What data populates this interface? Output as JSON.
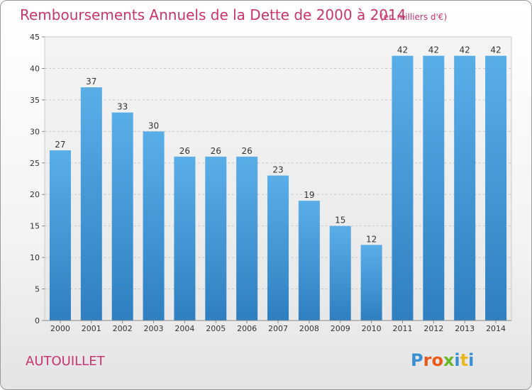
{
  "chart_data": {
    "type": "bar",
    "title": "Remboursements Annuels de la Dette de 2000 à 2014",
    "subtitle": "(en milliers d'€)",
    "categories": [
      "2000",
      "2001",
      "2002",
      "2003",
      "2004",
      "2005",
      "2006",
      "2007",
      "2008",
      "2009",
      "2010",
      "2011",
      "2012",
      "2013",
      "2014"
    ],
    "values": [
      27,
      37,
      33,
      30,
      26,
      26,
      26,
      23,
      19,
      15,
      12,
      42,
      42,
      42,
      42
    ],
    "ylim": [
      0,
      45
    ],
    "yticks": [
      0,
      5,
      10,
      15,
      20,
      25,
      30,
      35,
      40,
      45
    ],
    "xlabel": "",
    "ylabel": "",
    "grid": true
  },
  "footer": {
    "town": "AUTOUILLET",
    "logo_letters": [
      "P",
      "r",
      "o",
      "x",
      "i",
      "t",
      "i"
    ]
  },
  "colors": {
    "bar_top": "#5aaee8",
    "bar_bottom": "#2f7fc0",
    "title": "#c8356f",
    "logo": [
      "#3a8fd0",
      "#e85a1a",
      "#e85a1a",
      "#6ab82a",
      "#3a8fd0",
      "#e8b81a",
      "#3a8fd0"
    ]
  }
}
